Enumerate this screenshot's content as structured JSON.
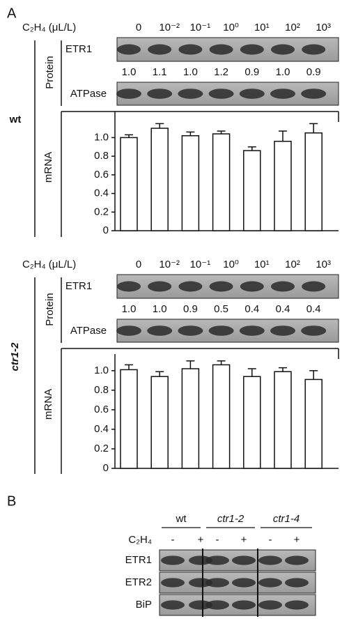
{
  "panel_a": {
    "label": "A",
    "treatment_label": "C₂H₄ (μL/L)",
    "concentrations": [
      "0",
      "10⁻²",
      "10⁻¹",
      "10⁰",
      "10¹",
      "10²",
      "10³"
    ],
    "protein_label": "Protein",
    "mrna_label": "mRNA",
    "blots": [
      "ETR1",
      "ATPase"
    ],
    "genotypes": [
      {
        "name": "wt",
        "etr1_levels": [
          "1.0",
          "1.1",
          "1.0",
          "1.2",
          "0.9",
          "1.0",
          "0.9"
        ]
      },
      {
        "name": "ctr1-2",
        "etr1_levels": [
          "1.0",
          "1.0",
          "0.9",
          "0.5",
          "0.4",
          "0.4",
          "0.4"
        ]
      }
    ]
  },
  "chart_data": [
    {
      "type": "bar",
      "values": [
        1.0,
        1.1,
        1.02,
        1.04,
        0.86,
        0.96,
        1.05
      ],
      "errors": [
        0.03,
        0.05,
        0.04,
        0.03,
        0.04,
        0.11,
        0.1
      ],
      "color": "#ffffff",
      "ylim": [
        0,
        1.28
      ],
      "yticks": [
        0,
        0.2,
        0.4,
        0.6,
        0.8,
        {
          "value": 1,
          "label": "1.0"
        }
      ]
    },
    {
      "type": "bar",
      "values": [
        1.01,
        0.94,
        1.02,
        1.06,
        0.94,
        0.99,
        0.91
      ],
      "errors": [
        0.05,
        0.05,
        0.08,
        0.04,
        0.08,
        0.04,
        0.09
      ],
      "color": "#ffffff",
      "ylim": [
        0,
        1.17
      ],
      "yticks": [
        0,
        0.2,
        0.4,
        0.6,
        0.8,
        {
          "value": 1,
          "label": "1.0"
        }
      ]
    }
  ],
  "panel_b": {
    "label": "B",
    "treatment_label": "C₂H₄",
    "genotypes": [
      "wt",
      "ctr1-2",
      "ctr1-4"
    ],
    "treatments": [
      "-",
      "+",
      "-",
      "+",
      "-",
      "+"
    ],
    "rows": [
      "ETR1",
      "ETR2",
      "BiP"
    ]
  }
}
